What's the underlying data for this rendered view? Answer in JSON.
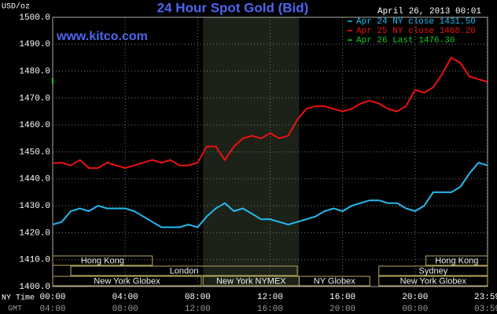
{
  "chart_data": {
    "type": "line",
    "title": "24 Hour Spot Gold (Bid)",
    "site": "www.kitco.com",
    "date": "April 26, 2013 00:01",
    "y_label": "USD/oz",
    "x_label": "NY Time",
    "x2_label": "GMT",
    "grid": true,
    "xlim": [
      0,
      24
    ],
    "xticks": [
      {
        "value": 0,
        "label": "00:00"
      },
      {
        "value": 4,
        "label": "04:00"
      },
      {
        "value": 8,
        "label": "08:00"
      },
      {
        "value": 12,
        "label": "12:00"
      },
      {
        "value": 16,
        "label": "16:00"
      },
      {
        "value": 20,
        "label": "20:00"
      },
      {
        "value": 23.98,
        "label": "23:59"
      }
    ],
    "x2ticklabels": [
      "04:00",
      "08:00",
      "12:00",
      "16:00",
      "20:00",
      "00:00",
      "03:59"
    ],
    "ylim": [
      1400,
      1500
    ],
    "yticks": [
      {
        "value": 1400,
        "label": "1400.0"
      },
      {
        "value": 1410,
        "label": "1410.0"
      },
      {
        "value": 1420,
        "label": "1420.0"
      },
      {
        "value": 1430,
        "label": "1430.0"
      },
      {
        "value": 1440,
        "label": "1440.0"
      },
      {
        "value": 1450,
        "label": "1450.0"
      },
      {
        "value": 1460,
        "label": "1460.0"
      },
      {
        "value": 1470,
        "label": "1470.0"
      },
      {
        "value": 1480,
        "label": "1480.0"
      },
      {
        "value": 1490,
        "label": "1490.0"
      },
      {
        "value": 1500,
        "label": "1500.0"
      }
    ],
    "series": [
      {
        "name": "Apr 24 NY close 1431.50",
        "color": "#22bbee",
        "x": [
          0,
          0.5,
          1,
          1.5,
          2,
          2.5,
          3,
          3.5,
          4,
          4.5,
          5,
          5.5,
          6,
          6.5,
          7,
          7.5,
          8,
          8.5,
          9,
          9.5,
          10,
          10.5,
          11,
          11.5,
          12,
          12.5,
          13,
          13.5,
          14,
          14.5,
          15,
          15.5,
          16,
          16.5,
          17,
          17.5,
          18,
          18.5,
          19,
          19.5,
          20,
          20.5,
          21,
          21.5,
          22,
          22.5,
          23,
          23.5,
          23.98
        ],
        "values": [
          1423,
          1424,
          1428,
          1429,
          1428,
          1430,
          1429,
          1429,
          1429,
          1428,
          1426,
          1424,
          1422,
          1422,
          1422,
          1423,
          1422,
          1426,
          1429,
          1431,
          1428,
          1429,
          1427,
          1425,
          1425,
          1424,
          1423,
          1424,
          1425,
          1426,
          1428,
          1429,
          1428,
          1430,
          1431,
          1432,
          1432,
          1431,
          1431,
          1429,
          1428,
          1430,
          1435,
          1435,
          1435,
          1437,
          1442,
          1446,
          1445
        ]
      },
      {
        "name": "Apr 25 NY close 1468.20",
        "color": "#ee1111",
        "x": [
          0,
          0.5,
          1,
          1.5,
          2,
          2.5,
          3,
          3.5,
          4,
          4.5,
          5,
          5.5,
          6,
          6.5,
          7,
          7.5,
          8,
          8.5,
          9,
          9.5,
          10,
          10.5,
          11,
          11.5,
          12,
          12.5,
          13,
          13.5,
          14,
          14.5,
          15,
          15.5,
          16,
          16.5,
          17,
          17.5,
          18,
          18.5,
          19,
          19.5,
          20,
          20.5,
          21,
          21.5,
          22,
          22.5,
          23,
          23.5,
          23.98
        ],
        "values": [
          1445.8,
          1446,
          1445,
          1447,
          1444,
          1444,
          1446,
          1445,
          1444,
          1445,
          1446,
          1447,
          1446,
          1447,
          1445,
          1445,
          1446,
          1452,
          1452,
          1447,
          1452,
          1455,
          1456,
          1455,
          1457,
          1455,
          1456,
          1462,
          1466,
          1467,
          1467,
          1466,
          1465,
          1466,
          1468,
          1469,
          1468,
          1466,
          1465,
          1467,
          1473,
          1472,
          1474,
          1479,
          1485,
          1483,
          1478,
          1477,
          1476
        ]
      },
      {
        "name": "Apr 26 Last 1476.30",
        "color": "#11cc22",
        "x": [
          0
        ],
        "values": [
          1476.3
        ]
      }
    ],
    "session_rows": [
      [
        {
          "label": "Hong Kong",
          "start": 0,
          "end": 5.5
        },
        {
          "label": "Hong Kong",
          "start": 20.6,
          "end": 24
        }
      ],
      [
        {
          "label": "London",
          "start": 1,
          "end": 13.5
        },
        {
          "label": "Sydney",
          "start": 18,
          "end": 24
        }
      ],
      [
        {
          "label": "New York Globex",
          "start": 0,
          "end": 8.2
        },
        {
          "label": "New York NYMEX",
          "start": 8.3,
          "end": 13.6,
          "highlight": true
        },
        {
          "label": "NY Globex",
          "start": 13.6,
          "end": 17.5
        },
        {
          "label": "New York Globex",
          "start": 18,
          "end": 24
        }
      ]
    ]
  }
}
